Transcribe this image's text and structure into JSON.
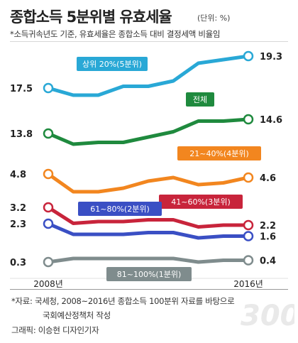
{
  "header": {
    "title": "종합소득 5분위별 유효세율",
    "unit": "(단위: %)",
    "note": "*소득귀속년도 기준, 유효세율은 종합소득 대비 결정세액 비율임"
  },
  "footer": {
    "source_line1": "*자료: 국세청, 2008~2016년 종합소득 100분위 자료를 바탕으로",
    "source_line2": "국회예산정책처 작성",
    "credit": "그래픽: 이승현 디자인기자",
    "watermark": "300"
  },
  "colors": {
    "q5": "#29a8d6",
    "total": "#1f8a3e",
    "q4": "#f2861f",
    "q3": "#c8243b",
    "q2": "#3a4fc4",
    "q1": "#7f8c8d"
  },
  "chart_data": {
    "type": "line",
    "title": "종합소득 5분위별 유효세율",
    "x": [
      "2008년",
      "",
      "",
      "",
      "",
      "",
      "",
      "",
      "2016년"
    ],
    "x_tick_labels": [
      "2008년",
      "2016년"
    ],
    "ylabel": "%",
    "series": [
      {
        "name": "상위 20%(5분위)",
        "key": "q5",
        "values": [
          17.5,
          17.1,
          17.1,
          17.6,
          17.6,
          17.9,
          18.9,
          19.1,
          19.3
        ],
        "start_label": "17.5",
        "end_label": "19.3"
      },
      {
        "name": "전체",
        "key": "total",
        "values": [
          13.8,
          13.2,
          13.3,
          13.3,
          13.6,
          13.9,
          14.5,
          14.5,
          14.6
        ],
        "start_label": "13.8",
        "end_label": "14.6"
      },
      {
        "name": "21~40%(4분위)",
        "key": "q4",
        "values": [
          4.8,
          3.8,
          3.8,
          4.0,
          4.4,
          4.6,
          4.2,
          4.3,
          4.6
        ],
        "start_label": "4.8",
        "end_label": "4.6"
      },
      {
        "name": "41~60%(3분위)",
        "key": "q3",
        "values": [
          3.2,
          2.3,
          2.4,
          2.4,
          2.5,
          2.5,
          2.1,
          2.2,
          2.2
        ],
        "start_label": "3.2",
        "end_label": "2.2"
      },
      {
        "name": "61~80%(2분위)",
        "key": "q2",
        "values": [
          2.3,
          1.7,
          1.7,
          1.7,
          1.8,
          1.8,
          1.5,
          1.6,
          1.6
        ],
        "start_label": "2.3",
        "end_label": "1.6"
      },
      {
        "name": "81~100%(1분위)",
        "key": "q1",
        "values": [
          0.3,
          0.5,
          0.5,
          0.5,
          0.5,
          0.5,
          0.3,
          0.4,
          0.4
        ],
        "start_label": "0.3",
        "end_label": "0.4"
      }
    ]
  }
}
